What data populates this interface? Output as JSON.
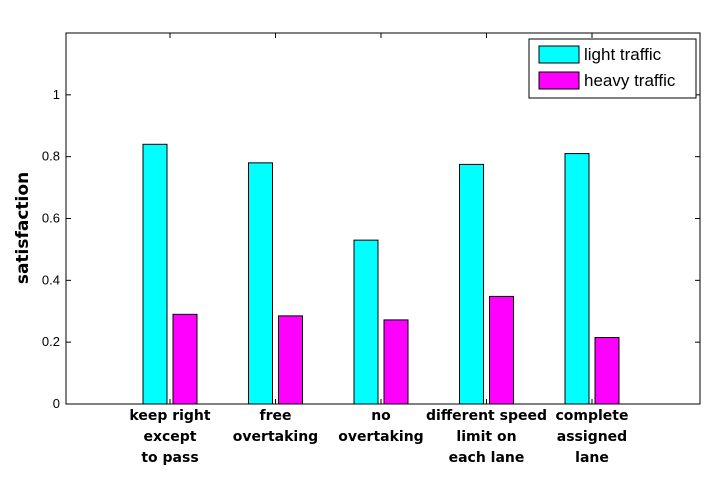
{
  "chart_data": {
    "type": "bar",
    "title": "",
    "xlabel": "",
    "ylabel": "satisfaction",
    "ylim": [
      0,
      1.2
    ],
    "yticks": [
      0,
      0.2,
      0.4,
      0.6,
      0.8,
      1
    ],
    "ytick_labels": [
      "0",
      "0.2",
      "0.4",
      "0.6",
      "0.8",
      "1"
    ],
    "grid": false,
    "legend_position": "top-right",
    "categories": [
      [
        "keep right",
        "except",
        "to  pass"
      ],
      [
        "free",
        "overtaking"
      ],
      [
        "no",
        "overtaking"
      ],
      [
        "different speed",
        "limit on",
        "each lane"
      ],
      [
        "complete",
        "assigned",
        "lane"
      ]
    ],
    "series": [
      {
        "name": "light traffic",
        "color": "#00ffff",
        "values": [
          0.84,
          0.78,
          0.53,
          0.775,
          0.81
        ]
      },
      {
        "name": "heavy traffic",
        "color": "#ff00ff",
        "values": [
          0.29,
          0.285,
          0.272,
          0.348,
          0.215
        ]
      }
    ]
  }
}
